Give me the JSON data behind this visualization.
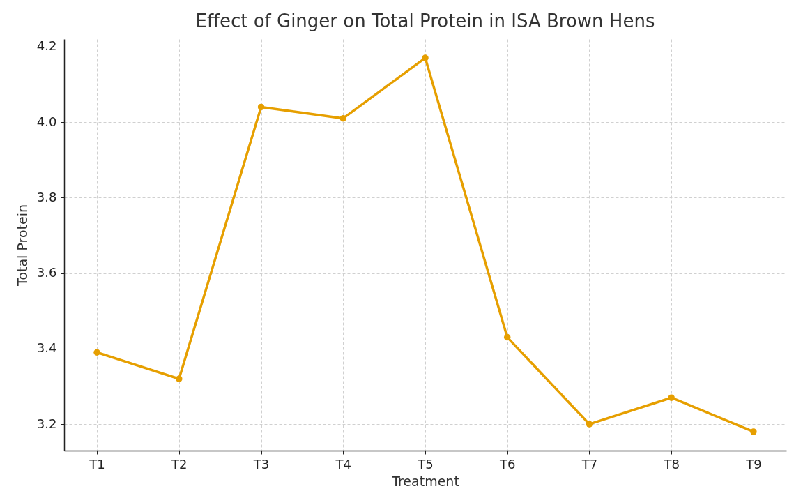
{
  "chart_data": {
    "type": "line",
    "title": "Effect of Ginger on Total Protein in ISA Brown Hens",
    "xlabel": "Treatment",
    "ylabel": "Total Protein",
    "categories": [
      "T1",
      "T2",
      "T3",
      "T4",
      "T5",
      "T6",
      "T7",
      "T8",
      "T9"
    ],
    "series": [
      {
        "color": "#e69f00",
        "values": [
          3.39,
          3.32,
          4.04,
          4.01,
          4.17,
          3.43,
          3.2,
          3.27,
          3.18
        ]
      }
    ],
    "ylim": [
      3.13,
      4.22
    ],
    "yticks": [
      3.2,
      3.4,
      3.6,
      3.8,
      {
        "value": 4,
        "label": "4.0"
      },
      4.2
    ],
    "grid": true,
    "marker": "circle",
    "line_style": "solid"
  }
}
